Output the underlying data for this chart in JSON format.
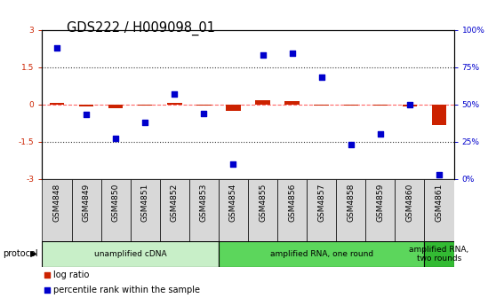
{
  "title": "GDS222 / H009098_01",
  "samples": [
    "GSM4848",
    "GSM4849",
    "GSM4850",
    "GSM4851",
    "GSM4852",
    "GSM4853",
    "GSM4854",
    "GSM4855",
    "GSM4856",
    "GSM4857",
    "GSM4858",
    "GSM4859",
    "GSM4860",
    "GSM4861"
  ],
  "log_ratio": [
    0.05,
    -0.1,
    -0.15,
    -0.05,
    0.05,
    -0.05,
    -0.25,
    0.18,
    0.12,
    -0.05,
    -0.04,
    -0.04,
    -0.08,
    -0.85
  ],
  "percentile_rank": [
    88,
    43,
    27,
    38,
    57,
    44,
    10,
    83,
    84,
    68,
    23,
    30,
    50,
    3
  ],
  "log_ratio_ylim": [
    -3,
    3
  ],
  "percentile_ylim": [
    0,
    100
  ],
  "protocols": [
    {
      "label": "unamplified cDNA",
      "start": 0,
      "end": 5,
      "color": "#c8efc8"
    },
    {
      "label": "amplified RNA, one round",
      "start": 6,
      "end": 12,
      "color": "#5cd65c"
    },
    {
      "label": "amplified RNA,\ntwo rounds",
      "start": 13,
      "end": 13,
      "color": "#33bb33"
    }
  ],
  "log_ratio_color": "#cc2200",
  "percentile_color": "#0000cc",
  "zero_line_color": "#ff6666",
  "dotted_line_color": "#333333",
  "background_color": "#ffffff",
  "tick_label_fontsize": 6.5,
  "title_fontsize": 10.5
}
